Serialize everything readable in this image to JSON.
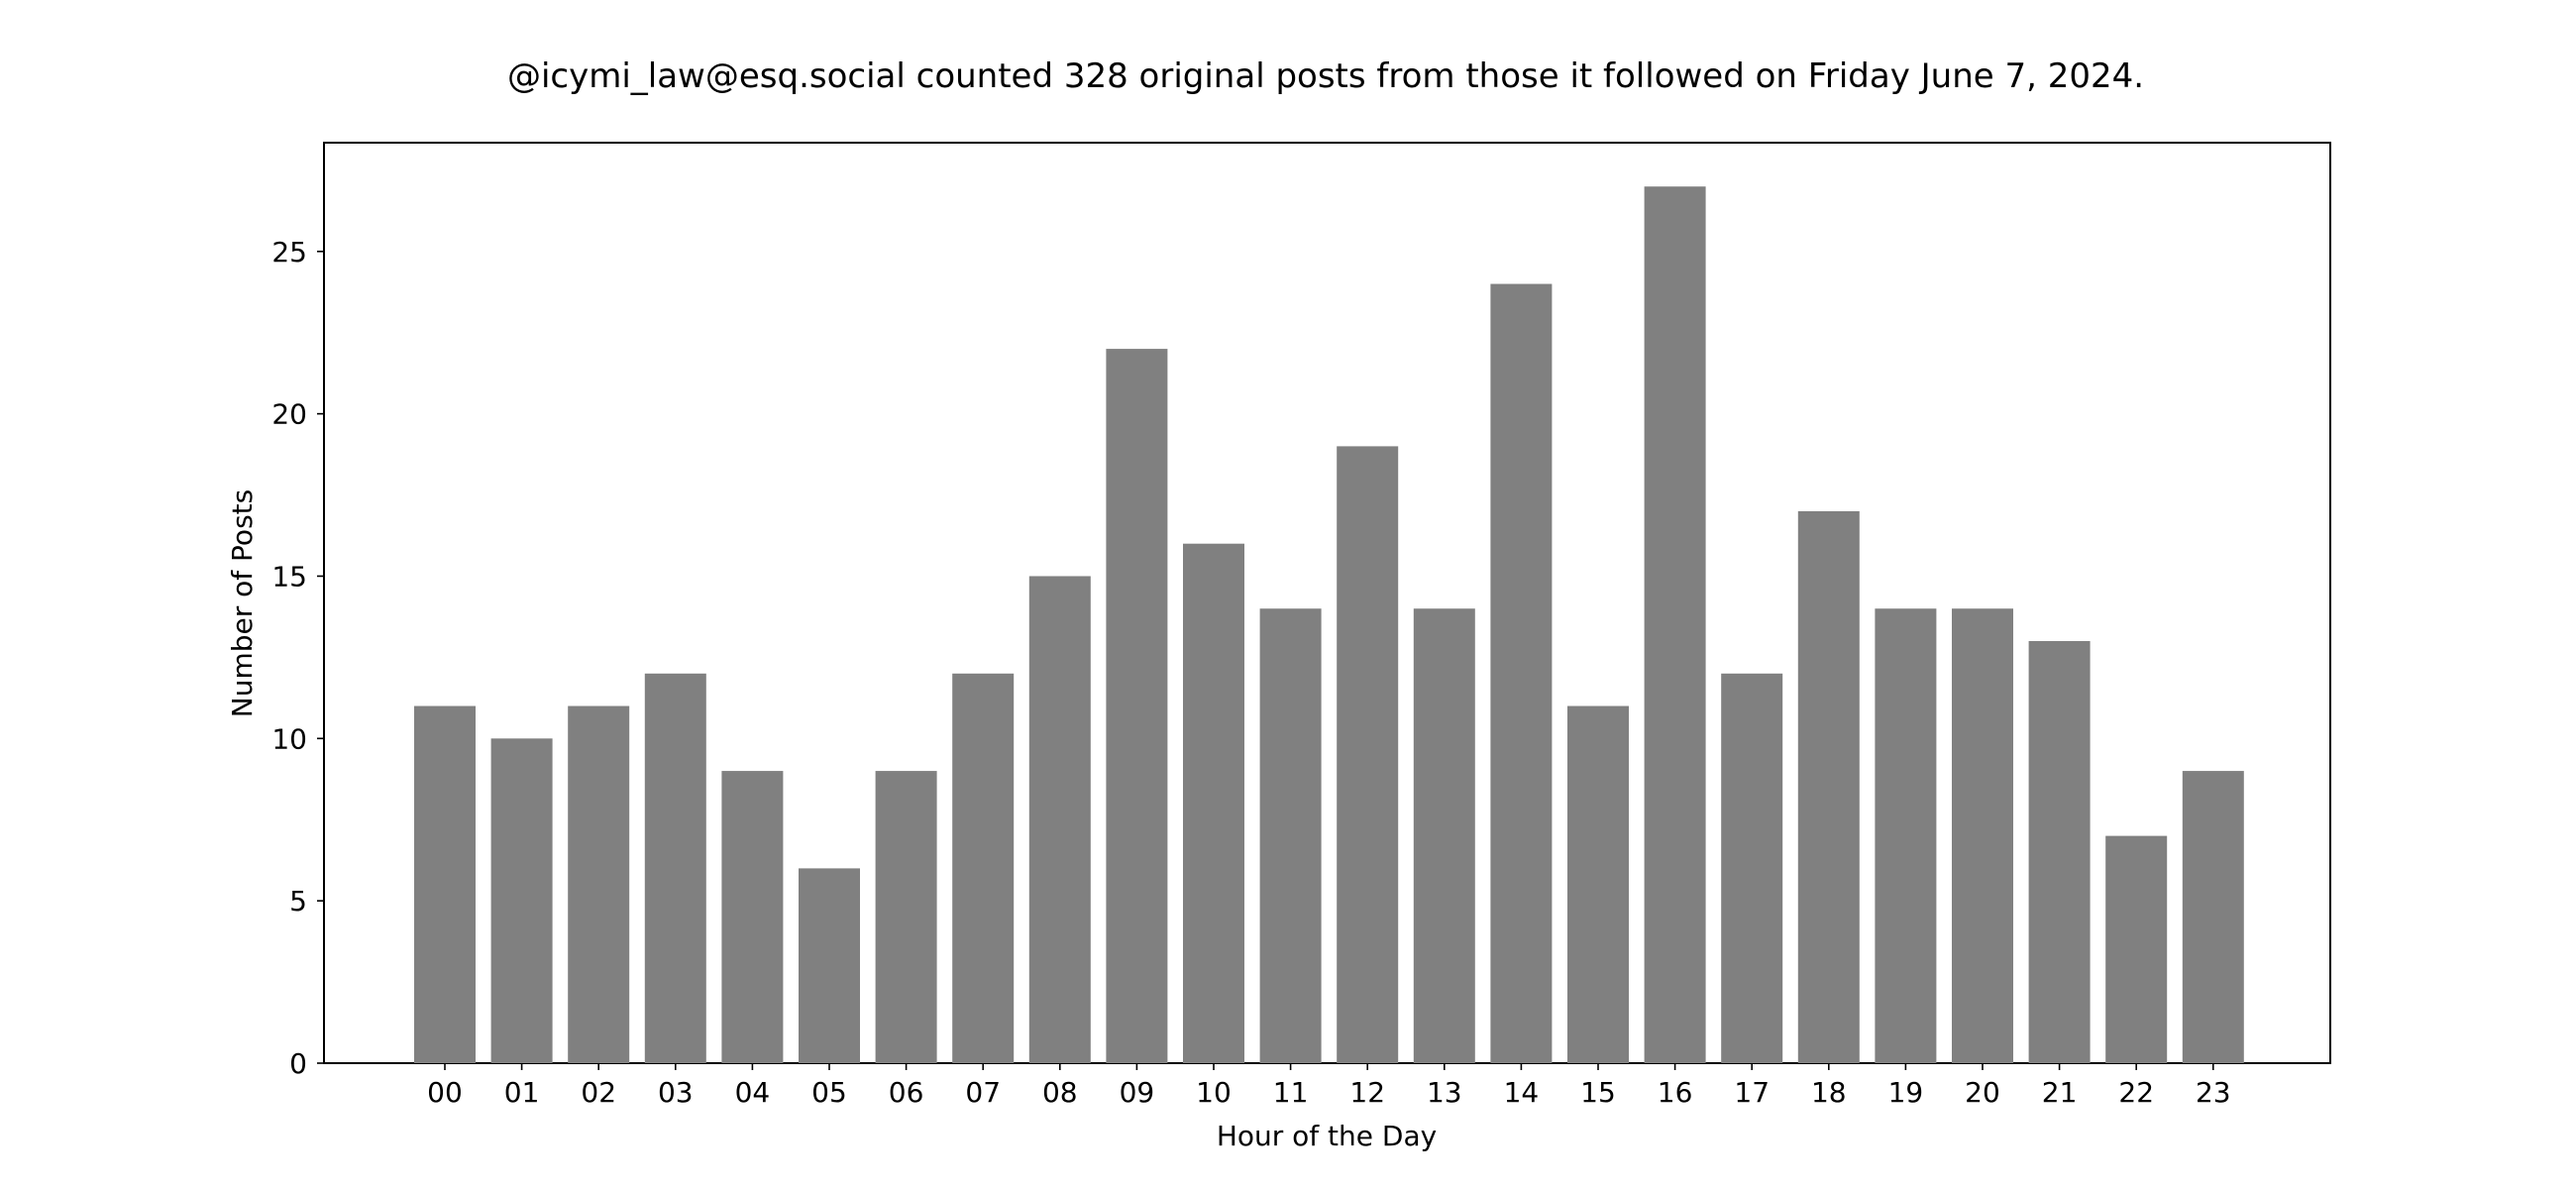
{
  "chart_data": {
    "type": "bar",
    "title": "@icymi_law@esq.social counted 328 original posts from those it followed on Friday June 7, 2024.",
    "xlabel": "Hour of the Day",
    "ylabel": "Number of Posts",
    "categories": [
      "00",
      "01",
      "02",
      "03",
      "04",
      "05",
      "06",
      "07",
      "08",
      "09",
      "10",
      "11",
      "12",
      "13",
      "14",
      "15",
      "16",
      "17",
      "18",
      "19",
      "20",
      "21",
      "22",
      "23"
    ],
    "values": [
      11,
      10,
      11,
      12,
      9,
      6,
      9,
      12,
      15,
      22,
      16,
      14,
      19,
      14,
      24,
      11,
      27,
      12,
      17,
      14,
      14,
      13,
      7,
      9
    ],
    "yticks": [
      "0",
      "5",
      "10",
      "15",
      "20",
      "25"
    ],
    "ylim": [
      0,
      28.35
    ],
    "grid": false,
    "legend": "none",
    "bar_color": "#808080"
  }
}
